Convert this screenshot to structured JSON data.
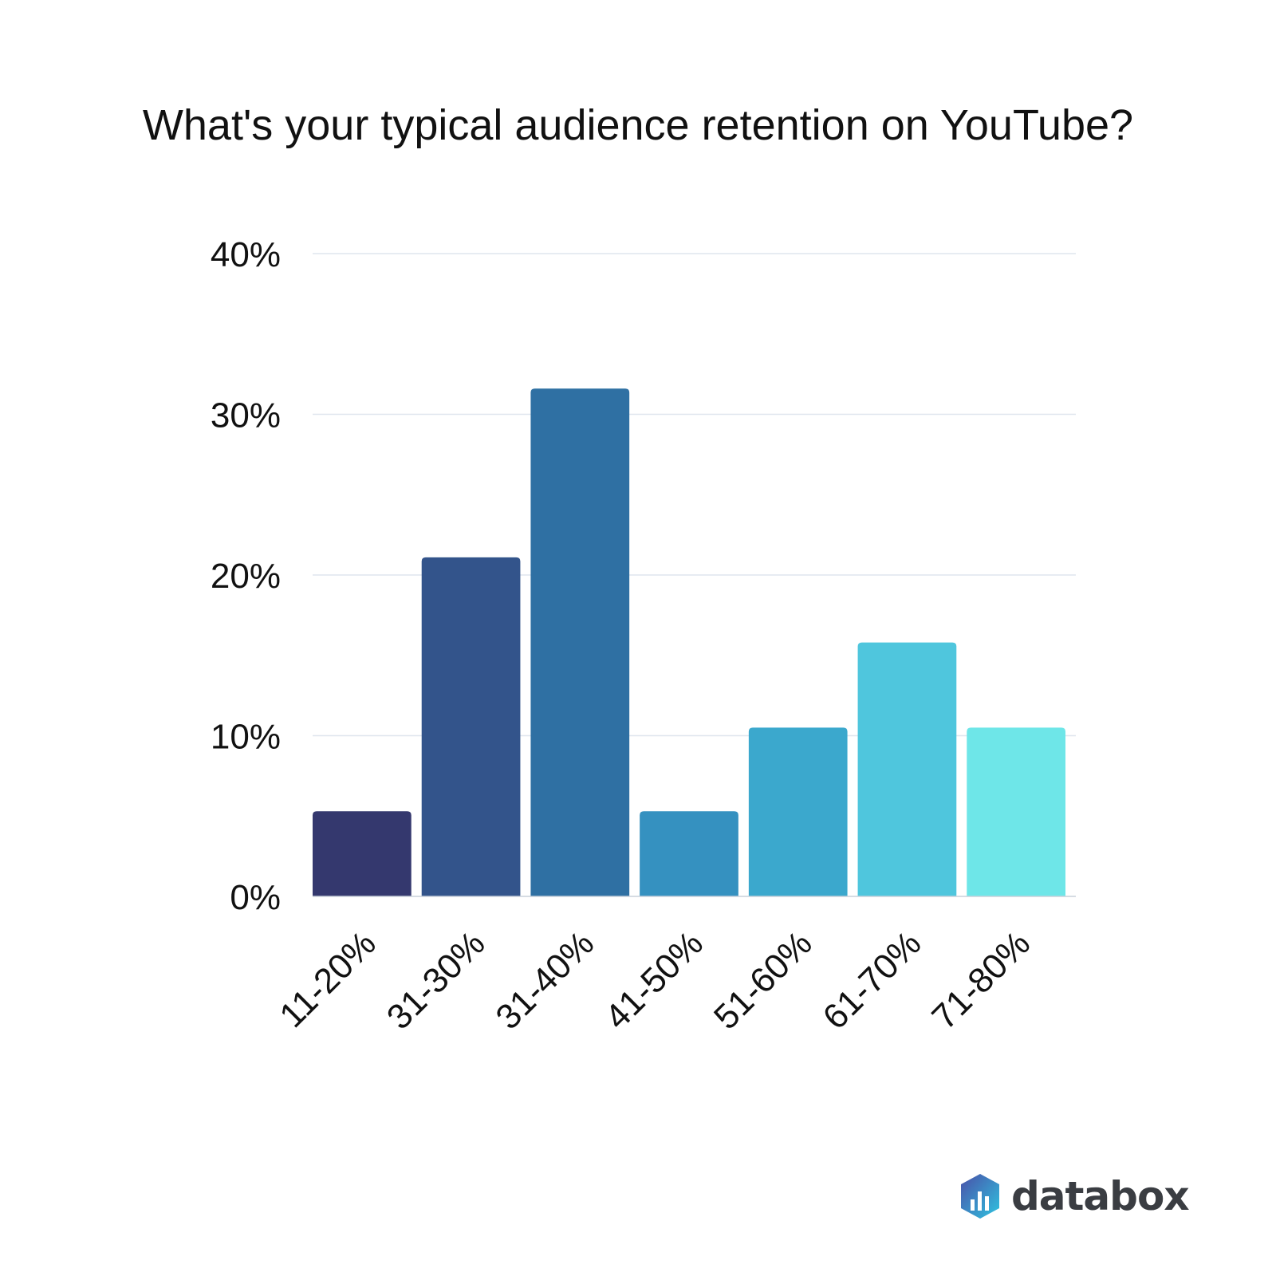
{
  "chart_data": {
    "type": "bar",
    "title": "What's your typical audience retention on YouTube?",
    "categories": [
      "11-20%",
      "31-30%",
      "31-40%",
      "41-50%",
      "51-60%",
      "61-70%",
      "71-80%"
    ],
    "values": [
      5.3,
      21.1,
      31.6,
      5.3,
      10.5,
      15.8,
      10.5
    ],
    "colors": [
      "#34386e",
      "#33548b",
      "#2f70a3",
      "#3591c0",
      "#3ba8cd",
      "#4fc6dd",
      "#6ee6e8"
    ],
    "xlabel": "",
    "ylabel": "",
    "ylim": [
      0,
      40
    ],
    "yticks": [
      "0%",
      "10%",
      "20%",
      "30%",
      "40%"
    ],
    "ytick_values": [
      0,
      10,
      20,
      30,
      40
    ],
    "grid": true
  },
  "brand": {
    "name": "databox"
  }
}
